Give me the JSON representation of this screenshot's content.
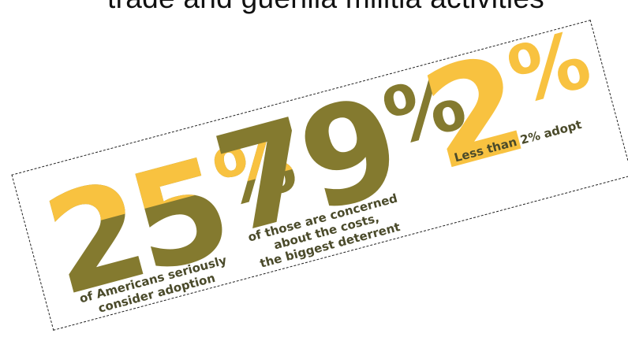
{
  "top_caption": "trade and guerilla militia activities",
  "colors": {
    "olive": "#847a2f",
    "gold": "#f8c240",
    "caption_text": "#4a4a2a",
    "frame_border": "#222222"
  },
  "stats": [
    {
      "number": "25",
      "percent_sign": "%",
      "caption_line1": "of Americans seriously",
      "caption_line2": "consider adoption",
      "caption_line3": ""
    },
    {
      "number": "79",
      "percent_sign": "%",
      "caption_line1": "of those are concerned",
      "caption_line2": "about the costs,",
      "caption_line3": "the biggest deterrent"
    },
    {
      "number": "2",
      "percent_sign": "%",
      "caption_line1": "Less than 2% adopt",
      "caption_line2": "",
      "caption_line3": ""
    }
  ]
}
